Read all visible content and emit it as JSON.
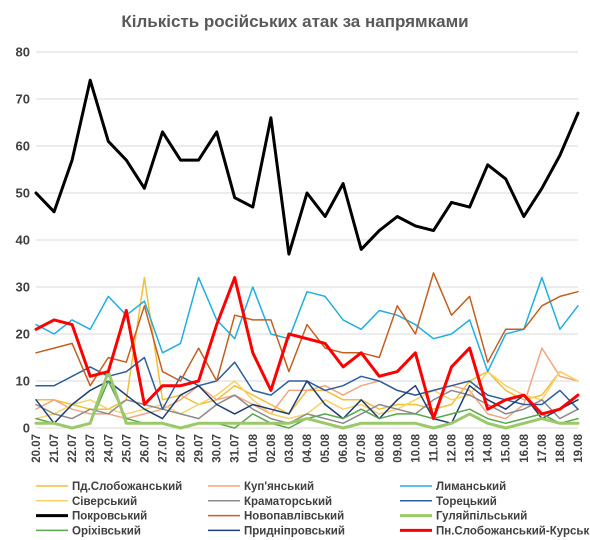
{
  "chart_data": {
    "type": "line",
    "title": "Кількість російських атак за напрямками",
    "xlabel": "",
    "ylabel": "",
    "ylim": [
      0,
      80
    ],
    "yticks": [
      0,
      10,
      20,
      30,
      40,
      50,
      60,
      70,
      80
    ],
    "grid": true,
    "legend_position": "bottom",
    "x": [
      "20.07",
      "21.07",
      "22.07",
      "23.07",
      "24.07",
      "25.07",
      "26.07",
      "27.07",
      "28.07",
      "29.07",
      "30.07",
      "31.07",
      "01.08",
      "02.08",
      "03.08",
      "04.08",
      "05.08",
      "06.08",
      "07.08",
      "08.08",
      "09.08",
      "10.08",
      "11.08",
      "12.08",
      "13.08",
      "14.08",
      "15.08",
      "16.08",
      "17.08",
      "18.08",
      "19.08"
    ],
    "series": [
      {
        "name": "Пд.Слобожанський",
        "color": "#f2c037",
        "width": 1.5,
        "values": [
          6,
          6,
          5,
          4,
          4,
          6,
          32,
          6,
          7,
          5,
          6,
          9,
          7,
          5,
          3,
          8,
          8,
          6,
          6,
          4,
          5,
          5,
          4,
          5,
          10,
          12,
          8,
          6,
          7,
          12,
          10
        ]
      },
      {
        "name": "Куп'янський",
        "color": "#f4a582",
        "width": 1.5,
        "values": [
          4,
          6,
          4,
          3,
          3,
          2,
          3,
          4,
          6,
          9,
          6,
          7,
          5,
          3,
          8,
          8,
          9,
          7,
          9,
          10,
          8,
          7,
          8,
          9,
          8,
          3,
          2,
          5,
          17,
          11,
          10
        ]
      },
      {
        "name": "Лиманський",
        "color": "#22aee2",
        "width": 1.5,
        "values": [
          22,
          20,
          23,
          21,
          28,
          24,
          27,
          16,
          18,
          32,
          23,
          19,
          30,
          20,
          19,
          29,
          28,
          23,
          21,
          25,
          24,
          22,
          19,
          20,
          23,
          12,
          20,
          21,
          32,
          21,
          26
        ]
      },
      {
        "name": "Сіверський",
        "color": "#f7d26b",
        "width": 1.5,
        "values": [
          2,
          3,
          5,
          6,
          4,
          3,
          4,
          5,
          3,
          5,
          7,
          10,
          6,
          3,
          2,
          3,
          6,
          4,
          5,
          3,
          4,
          6,
          8,
          6,
          7,
          12,
          9,
          7,
          6,
          12,
          10
        ]
      },
      {
        "name": "Краматорський",
        "color": "#8c8c8c",
        "width": 1.5,
        "values": [
          5,
          3,
          2,
          4,
          3,
          6,
          5,
          4,
          3,
          2,
          5,
          7,
          4,
          2,
          1,
          3,
          2,
          1,
          3,
          5,
          4,
          3,
          6,
          8,
          7,
          5,
          3,
          4,
          6,
          2,
          4
        ]
      },
      {
        "name": "Торецький",
        "color": "#2e5f9e",
        "width": 1.5,
        "values": [
          9,
          9,
          11,
          13,
          11,
          12,
          15,
          4,
          11,
          9,
          10,
          14,
          8,
          7,
          10,
          10,
          8,
          9,
          11,
          10,
          8,
          7,
          8,
          9,
          10,
          7,
          6,
          5,
          5,
          8,
          4
        ]
      },
      {
        "name": "Покровський",
        "color": "#000000",
        "width": 3,
        "values": [
          50,
          46,
          57,
          74,
          61,
          57,
          51,
          63,
          57,
          57,
          63,
          49,
          47,
          66,
          37,
          50,
          45,
          52,
          38,
          42,
          45,
          43,
          42,
          48,
          47,
          56,
          53,
          45,
          51,
          58,
          67
        ]
      },
      {
        "name": "Новопавлівський",
        "color": "#c45f22",
        "width": 1.5,
        "values": [
          16,
          17,
          18,
          9,
          15,
          14,
          26,
          12,
          10,
          17,
          10,
          24,
          23,
          23,
          12,
          22,
          17,
          16,
          16,
          15,
          26,
          20,
          33,
          24,
          28,
          14,
          21,
          21,
          26,
          28,
          29
        ]
      },
      {
        "name": "Гуляйпільський",
        "color": "#9bc96a",
        "width": 3,
        "values": [
          1,
          1,
          0,
          1,
          12,
          1,
          1,
          1,
          0,
          1,
          1,
          1,
          1,
          1,
          1,
          2,
          1,
          0,
          1,
          1,
          1,
          1,
          0,
          1,
          3,
          1,
          0,
          1,
          2,
          1,
          1
        ]
      },
      {
        "name": "Оріхівський",
        "color": "#5aa84e",
        "width": 1.5,
        "values": [
          2,
          1,
          0,
          1,
          10,
          2,
          1,
          1,
          0,
          1,
          1,
          0,
          3,
          1,
          0,
          2,
          3,
          2,
          4,
          2,
          3,
          3,
          2,
          3,
          4,
          2,
          1,
          2,
          3,
          1,
          2
        ]
      },
      {
        "name": "Придніпровський",
        "color": "#1f3f73",
        "width": 1.5,
        "values": [
          6,
          1,
          5,
          8,
          10,
          7,
          4,
          2,
          7,
          9,
          5,
          3,
          5,
          4,
          3,
          10,
          5,
          2,
          6,
          2,
          6,
          9,
          2,
          1,
          9,
          6,
          4,
          7,
          2,
          4,
          6
        ]
      },
      {
        "name": "Пн.Слобожанський-Курський",
        "color": "#ff0000",
        "width": 3,
        "values": [
          21,
          23,
          22,
          11,
          12,
          25,
          5,
          9,
          9,
          10,
          22,
          32,
          16,
          8,
          20,
          19,
          18,
          13,
          16,
          11,
          12,
          16,
          2,
          13,
          17,
          4,
          6,
          7,
          3,
          4,
          7
        ]
      }
    ]
  }
}
